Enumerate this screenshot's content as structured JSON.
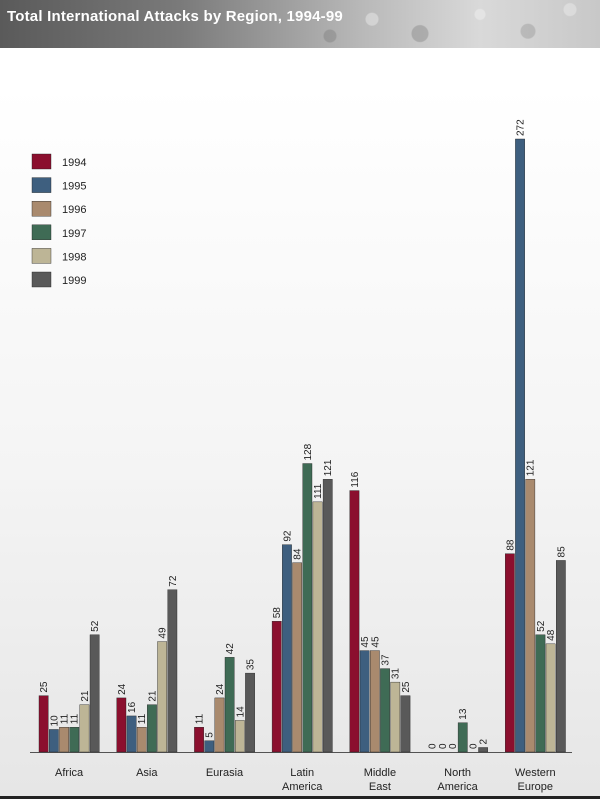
{
  "chart_data": {
    "type": "bar",
    "title": "Total International Attacks by Region, 1994-99",
    "categories": [
      [
        "Africa"
      ],
      [
        "Asia"
      ],
      [
        "Eurasia"
      ],
      [
        "Latin",
        "America"
      ],
      [
        "Middle",
        "East"
      ],
      [
        "North",
        "America"
      ],
      [
        "Western",
        "Europe"
      ]
    ],
    "series": [
      {
        "name": "1994",
        "color": "#8b0f2e",
        "values": [
          25,
          24,
          11,
          58,
          116,
          0,
          88
        ]
      },
      {
        "name": "1995",
        "color": "#3e5f7f",
        "values": [
          10,
          16,
          5,
          92,
          45,
          0,
          272
        ]
      },
      {
        "name": "1996",
        "color": "#a98a6e",
        "values": [
          11,
          11,
          24,
          84,
          45,
          0,
          121
        ]
      },
      {
        "name": "1997",
        "color": "#3f6b55",
        "values": [
          11,
          21,
          42,
          128,
          37,
          13,
          52
        ]
      },
      {
        "name": "1998",
        "color": "#bdb596",
        "values": [
          21,
          49,
          14,
          111,
          31,
          0,
          48
        ]
      },
      {
        "name": "1999",
        "color": "#595959",
        "values": [
          52,
          72,
          35,
          121,
          25,
          2,
          85
        ]
      }
    ],
    "ylim": [
      0,
      280
    ],
    "grid": false,
    "legend_position": "top-left"
  }
}
